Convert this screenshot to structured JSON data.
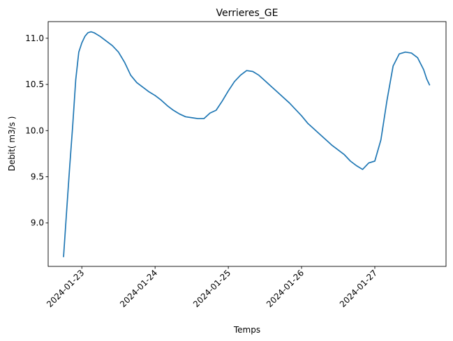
{
  "chart_data": {
    "type": "line",
    "title": "Verrieres_GE",
    "xlabel": "Temps",
    "ylabel": "Debit( m3/s )",
    "x_ticks": [
      "2024-01-23",
      "2024-01-24",
      "2024-01-25",
      "2024-01-26",
      "2024-01-27"
    ],
    "y_ticks": [
      9.0,
      9.5,
      10.0,
      10.5,
      11.0
    ],
    "xlim": [
      "2024-01-22T12:58",
      "2024-01-27T23:20"
    ],
    "ylim": [
      8.53,
      11.18
    ],
    "grid": false,
    "line_color": "#1f77b4",
    "series": [
      {
        "x": [
          "2024-01-22T18:00",
          "2024-01-22T19:00",
          "2024-01-22T20:00",
          "2024-01-22T21:00",
          "2024-01-22T22:00",
          "2024-01-22T23:00",
          "2024-01-23T00:00",
          "2024-01-23T01:00",
          "2024-01-23T02:00",
          "2024-01-23T03:00",
          "2024-01-23T04:00",
          "2024-01-23T06:00",
          "2024-01-23T08:00",
          "2024-01-23T10:00",
          "2024-01-23T12:00",
          "2024-01-23T14:00",
          "2024-01-23T16:00",
          "2024-01-23T18:00",
          "2024-01-23T20:00",
          "2024-01-23T22:00",
          "2024-01-24T00:00",
          "2024-01-24T02:00",
          "2024-01-24T04:00",
          "2024-01-24T06:00",
          "2024-01-24T08:00",
          "2024-01-24T10:00",
          "2024-01-24T12:00",
          "2024-01-24T14:00",
          "2024-01-24T16:00",
          "2024-01-24T18:00",
          "2024-01-24T20:00",
          "2024-01-24T22:00",
          "2024-01-25T00:00",
          "2024-01-25T02:00",
          "2024-01-25T04:00",
          "2024-01-25T06:00",
          "2024-01-25T08:00",
          "2024-01-25T10:00",
          "2024-01-25T12:00",
          "2024-01-25T14:00",
          "2024-01-25T16:00",
          "2024-01-25T18:00",
          "2024-01-25T20:00",
          "2024-01-25T22:00",
          "2024-01-26T00:00",
          "2024-01-26T02:00",
          "2024-01-26T04:00",
          "2024-01-26T06:00",
          "2024-01-26T08:00",
          "2024-01-26T10:00",
          "2024-01-26T12:00",
          "2024-01-26T14:00",
          "2024-01-26T16:00",
          "2024-01-26T18:00",
          "2024-01-26T20:00",
          "2024-01-26T22:00",
          "2024-01-27T00:00",
          "2024-01-27T02:00",
          "2024-01-27T04:00",
          "2024-01-27T06:00",
          "2024-01-27T08:00",
          "2024-01-27T10:00",
          "2024-01-27T12:00",
          "2024-01-27T14:00",
          "2024-01-27T16:00",
          "2024-01-27T17:00",
          "2024-01-27T18:00"
        ],
        "values": [
          8.63,
          9.12,
          9.6,
          10.05,
          10.55,
          10.85,
          10.95,
          11.02,
          11.06,
          11.07,
          11.06,
          11.02,
          10.97,
          10.92,
          10.85,
          10.74,
          10.6,
          10.52,
          10.47,
          10.42,
          10.38,
          10.33,
          10.27,
          10.22,
          10.18,
          10.15,
          10.14,
          10.13,
          10.13,
          10.19,
          10.22,
          10.32,
          10.43,
          10.53,
          10.6,
          10.65,
          10.64,
          10.6,
          10.54,
          10.48,
          10.42,
          10.36,
          10.3,
          10.23,
          10.16,
          10.08,
          10.02,
          9.96,
          9.9,
          9.84,
          9.79,
          9.74,
          9.67,
          9.62,
          9.58,
          9.65,
          9.67,
          9.9,
          10.33,
          10.7,
          10.83,
          10.85,
          10.84,
          10.79,
          10.66,
          10.56,
          10.49
        ]
      }
    ]
  }
}
